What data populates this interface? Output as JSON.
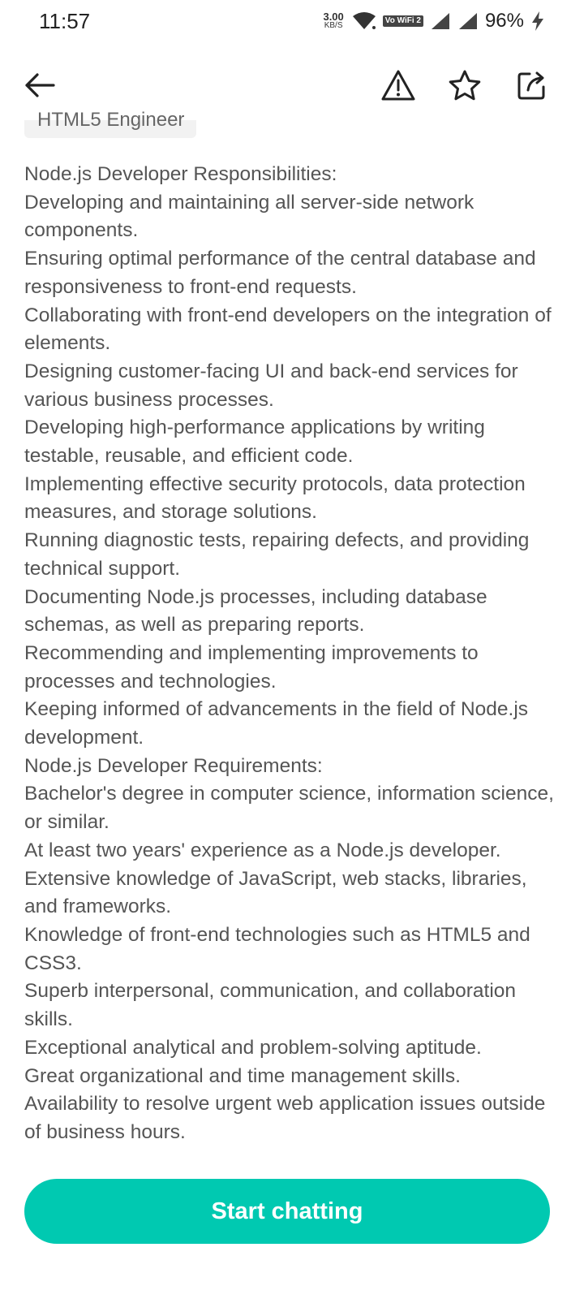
{
  "status_bar": {
    "time": "11:57",
    "net_speed_value": "3.00",
    "net_speed_unit": "KB/S",
    "volte_label": "Vo WiFi 2",
    "battery": "96%"
  },
  "toolbar": {
    "back_icon": "arrow-left-icon",
    "report_icon": "warning-icon",
    "favorite_icon": "star-icon",
    "share_icon": "share-icon"
  },
  "chip": {
    "label": "HTML5 Engineer"
  },
  "description": {
    "lines": [
      "Node.js Developer Responsibilities:",
      "Developing and maintaining all server-side network components.",
      "Ensuring optimal performance of the central database and responsiveness to front-end requests.",
      "Collaborating with front-end developers on the integration of elements.",
      "Designing customer-facing UI and back-end services for various business processes.",
      "Developing high-performance applications by writing testable, reusable, and efficient code.",
      "Implementing effective security protocols, data protection measures, and storage solutions.",
      "Running diagnostic tests, repairing defects, and providing technical support.",
      "Documenting Node.js processes, including database schemas, as well as preparing reports.",
      "Recommending and implementing improvements to processes and technologies.",
      "Keeping informed of advancements in the field of Node.js development.",
      "Node.js Developer Requirements:",
      "Bachelor's degree in computer science, information science, or similar.",
      "At least two years' experience as a Node.js developer.",
      "Extensive knowledge of JavaScript, web stacks, libraries, and frameworks.",
      "Knowledge of front-end technologies such as HTML5 and CSS3.",
      "Superb interpersonal, communication, and collaboration skills.",
      "Exceptional analytical and problem-solving aptitude.",
      "Great organizational and time management skills.",
      "Availability to resolve urgent web application issues outside of business hours."
    ]
  },
  "cta": {
    "label": "Start chatting",
    "color": "#00c9b1"
  }
}
